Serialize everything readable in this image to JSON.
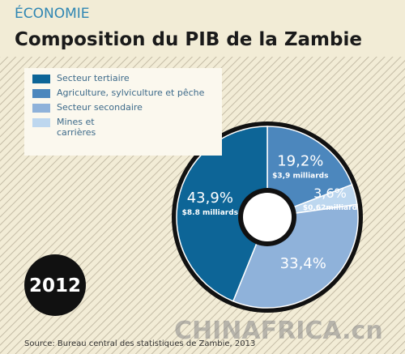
{
  "header": {
    "section": "ÉCONOMIE",
    "title": "Composition du PIB de la Zambie"
  },
  "chart_data": {
    "type": "donut",
    "categories": [
      "Secteur tertiaire",
      "Agriculture, sylviculture et pêche",
      "Secteur secondaire",
      "Mines et carrières"
    ],
    "values": [
      43.9,
      19.2,
      33.4,
      3.6
    ],
    "value_labels": [
      "43,9%",
      "19,2%",
      "33,4%",
      "3,6%"
    ],
    "sub_labels": [
      "$8.8 milliards",
      "$3,9 milliards",
      null,
      "$0,62milliard"
    ],
    "colors": [
      "#0d6597",
      "#4c87bd",
      "#8fb2da",
      "#bdd7ef"
    ],
    "year": "2012"
  },
  "source": "Source: Bureau central des statistiques de Zambie, 2013",
  "watermark": "CHINAFRICA.cn"
}
